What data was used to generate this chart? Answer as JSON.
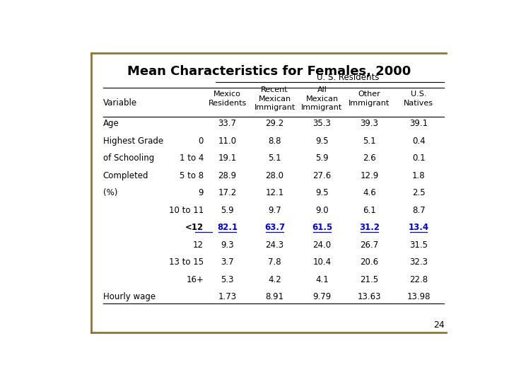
{
  "title": "Mean Characteristics for Females, 2000",
  "subtitle": "U. S. Residents",
  "rows": [
    {
      "col0": "Age",
      "col1": "",
      "col2": "33.7",
      "col3": "29.2",
      "col4": "35.3",
      "col5": "39.3",
      "col6": "39.1",
      "bold_row": false,
      "blue_row": false
    },
    {
      "col0": "Highest Grade",
      "col1": "0",
      "col2": "11.0",
      "col3": "8.8",
      "col4": "9.5",
      "col5": "5.1",
      "col6": "0.4",
      "bold_row": false,
      "blue_row": false
    },
    {
      "col0": "of Schooling",
      "col1": "1 to 4",
      "col2": "19.1",
      "col3": "5.1",
      "col4": "5.9",
      "col5": "2.6",
      "col6": "0.1",
      "bold_row": false,
      "blue_row": false
    },
    {
      "col0": "Completed",
      "col1": "5 to 8",
      "col2": "28.9",
      "col3": "28.0",
      "col4": "27.6",
      "col5": "12.9",
      "col6": "1.8",
      "bold_row": false,
      "blue_row": false
    },
    {
      "col0": "(%)",
      "col1": "9",
      "col2": "17.2",
      "col3": "12.1",
      "col4": "9.5",
      "col5": "4.6",
      "col6": "2.5",
      "bold_row": false,
      "blue_row": false
    },
    {
      "col0": "",
      "col1": "10 to 11",
      "col2": "5.9",
      "col3": "9.7",
      "col4": "9.0",
      "col5": "6.1",
      "col6": "8.7",
      "bold_row": false,
      "blue_row": false
    },
    {
      "col0": "",
      "col1": "<12",
      "col2": "82.1",
      "col3": "63.7",
      "col4": "61.5",
      "col5": "31.2",
      "col6": "13.4",
      "bold_row": true,
      "blue_row": true
    },
    {
      "col0": "",
      "col1": "12",
      "col2": "9.3",
      "col3": "24.3",
      "col4": "24.0",
      "col5": "26.7",
      "col6": "31.5",
      "bold_row": false,
      "blue_row": false
    },
    {
      "col0": "",
      "col1": "13 to 15",
      "col2": "3.7",
      "col3": "7.8",
      "col4": "10.4",
      "col5": "20.6",
      "col6": "32.3",
      "bold_row": false,
      "blue_row": false
    },
    {
      "col0": "",
      "col1": "16+",
      "col2": "5.3",
      "col3": "4.2",
      "col4": "4.1",
      "col5": "21.5",
      "col6": "22.8",
      "bold_row": false,
      "blue_row": false
    },
    {
      "col0": "Hourly wage",
      "col1": "",
      "col2": "1.73",
      "col3": "8.91",
      "col4": "9.79",
      "col5": "13.63",
      "col6": "13.98",
      "bold_row": false,
      "blue_row": false
    }
  ],
  "blue_color": "#0000CC",
  "black_color": "#000000",
  "border_color": "#8B7536",
  "bg_color": "#FFFFFF",
  "page_number": "24"
}
